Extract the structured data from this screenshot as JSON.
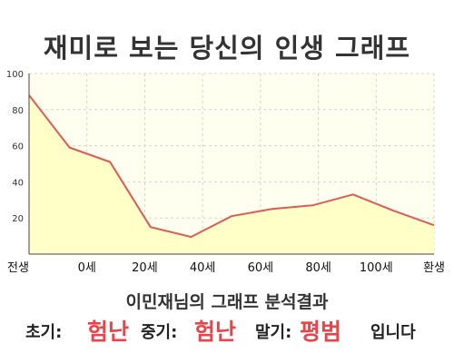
{
  "page": {
    "title": "재미로 보는 당신의 인생 그래프",
    "result_title": "이민재님의 그래프 분석결과",
    "early_label": "초기:",
    "early_value": "험난",
    "mid_label": "중기:",
    "mid_value": "험난",
    "late_label": "말기:",
    "late_value": "평범",
    "suffix": "입니다"
  },
  "chart_data": {
    "type": "area",
    "title": "",
    "xlabel": "",
    "ylabel": "",
    "ylim": [
      0,
      100
    ],
    "y_ticks": [
      20,
      40,
      60,
      80,
      100
    ],
    "x_tick_labels": [
      "전생",
      "0세",
      "20세",
      "40세",
      "60세",
      "80세",
      "100세",
      "환생"
    ],
    "grid": true,
    "line_color": "#e05a5a",
    "fill_color": "#ffffc8",
    "plot_bg": "#fffff0",
    "series": [
      {
        "values": [
          88,
          59,
          51,
          15,
          9.5,
          21,
          25,
          27,
          33,
          24,
          16
        ]
      }
    ]
  }
}
